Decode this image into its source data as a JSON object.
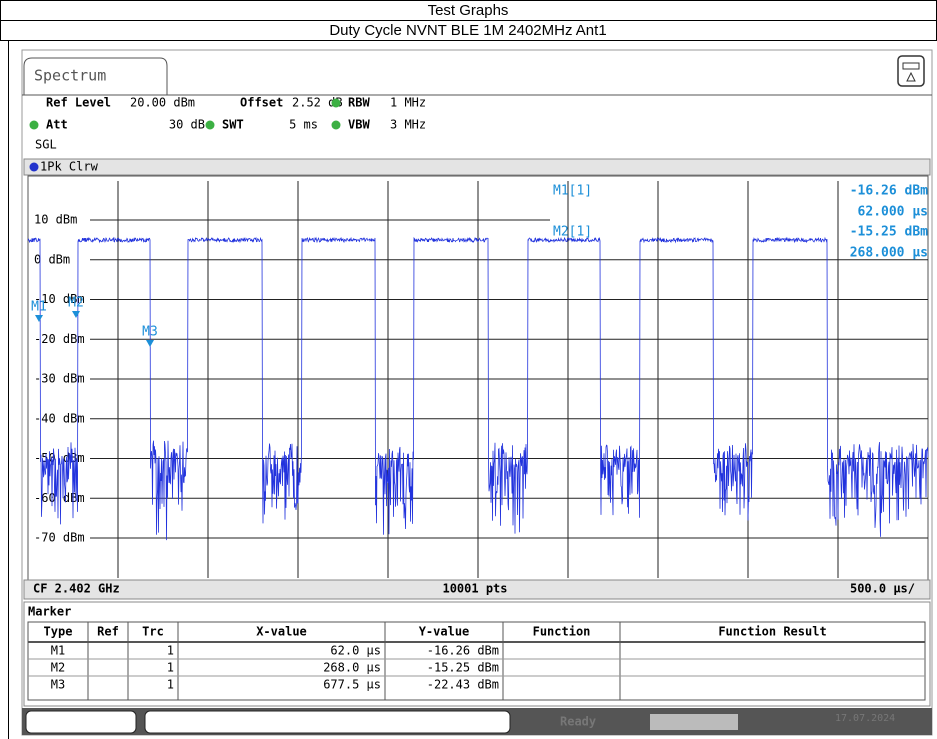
{
  "page": {
    "title": "Test Graphs",
    "subtitle": "Duty Cycle NVNT BLE 1M 2402MHz Ant1"
  },
  "tab": "Spectrum",
  "settings": [
    {
      "name": "Ref Level",
      "value": "20.00 dBm"
    },
    {
      "name": "Offset",
      "value": "2.52 dB"
    },
    {
      "name": "RBW",
      "value": "1 MHz"
    },
    {
      "name": "Att",
      "value": "30 dB"
    },
    {
      "name": "SWT",
      "value": "5 ms"
    },
    {
      "name": "VBW",
      "value": "3 MHz"
    }
  ],
  "mode": "SGL",
  "trace_label": "1Pk Clrw",
  "y_labels": [
    "10 dBm",
    "0 dBm",
    "-10 dBm",
    "-20 dBm",
    "-30 dBm",
    "-40 dBm",
    "-50 dBm",
    "-60 dBm",
    "-70 dBm"
  ],
  "markers": [
    "M1",
    "M2",
    "M3"
  ],
  "marker_readout": [
    {
      "name": "M1[1]",
      "y": "-16.26 dBm",
      "x": "62.000 µs"
    },
    {
      "name": "M2[1]",
      "y": "-15.25 dBm",
      "x": "268.000 µs"
    }
  ],
  "footer": {
    "center": "CF 2.402 GHz",
    "points": "10001 pts",
    "scale": "500.0 µs/"
  },
  "marker_table": {
    "title": "Marker",
    "headers": [
      "Type",
      "Ref",
      "Trc",
      "X-value",
      "Y-value",
      "Function",
      "Function Result"
    ],
    "rows": [
      {
        "type": "M1",
        "trc": "1",
        "x": "62.0 µs",
        "y": "-16.26 dBm"
      },
      {
        "type": "M2",
        "trc": "1",
        "x": "268.0 µs",
        "y": "-15.25 dBm"
      },
      {
        "type": "M3",
        "trc": "1",
        "x": "677.5 µs",
        "y": "-22.43 dBm"
      }
    ]
  },
  "status": {
    "state": "Ready",
    "date": "17.07.2024"
  }
}
